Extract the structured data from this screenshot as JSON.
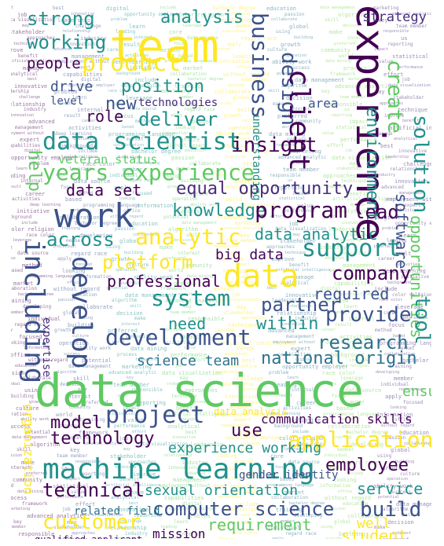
{
  "palette": [
    "#440154",
    "#3b528b",
    "#21918c",
    "#5ec962",
    "#fde725",
    "#2c728e",
    "#7ad151",
    "#472d7b"
  ],
  "words": [
    {
      "text": "strong",
      "c": 2
    },
    {
      "text": "team",
      "c": 4
    },
    {
      "text": "analysis",
      "c": 2
    },
    {
      "text": "experience",
      "c": 0
    },
    {
      "text": "strategy",
      "c": 7
    },
    {
      "text": "working",
      "c": 2
    },
    {
      "text": "product",
      "c": 4
    },
    {
      "text": "business",
      "c": 1
    },
    {
      "text": "design",
      "c": 1
    },
    {
      "text": "people",
      "c": 0
    },
    {
      "text": "position",
      "c": 2
    },
    {
      "text": "client",
      "c": 0
    },
    {
      "text": "new",
      "c": 1
    },
    {
      "text": "technologies",
      "c": 7
    },
    {
      "text": "role",
      "c": 0
    },
    {
      "text": "deliver",
      "c": 2
    },
    {
      "text": "drive",
      "c": 1
    },
    {
      "text": "level",
      "c": 1
    },
    {
      "text": "create",
      "c": 3
    },
    {
      "text": "area",
      "c": 1
    },
    {
      "text": "environment",
      "c": 2
    },
    {
      "text": "data scientist",
      "c": 2
    },
    {
      "text": "insight",
      "c": 0
    },
    {
      "text": "solution",
      "c": 2
    },
    {
      "text": "veteran status",
      "c": 3
    },
    {
      "text": "years experience",
      "c": 3
    },
    {
      "text": "help",
      "c": 3
    },
    {
      "text": "data set",
      "c": 0
    },
    {
      "text": "equal opportunity",
      "c": 7
    },
    {
      "text": "work",
      "c": 1
    },
    {
      "text": "knowledge",
      "c": 2
    },
    {
      "text": "program",
      "c": 0
    },
    {
      "text": "lead",
      "c": 0
    },
    {
      "text": "software",
      "c": 1
    },
    {
      "text": "across",
      "c": 2
    },
    {
      "text": "analytic",
      "c": 4
    },
    {
      "text": "data analytic",
      "c": 2
    },
    {
      "text": "opportunities",
      "c": 3
    },
    {
      "text": "support",
      "c": 2
    },
    {
      "text": "platform",
      "c": 4
    },
    {
      "text": "big data",
      "c": 0
    },
    {
      "text": "including",
      "c": 1
    },
    {
      "text": "develop",
      "c": 1
    },
    {
      "text": "data",
      "c": 4
    },
    {
      "text": "company",
      "c": 0
    },
    {
      "text": "professional",
      "c": 0
    },
    {
      "text": "system",
      "c": 2
    },
    {
      "text": "partner",
      "c": 1
    },
    {
      "text": "required",
      "c": 1
    },
    {
      "text": "provide",
      "c": 1
    },
    {
      "text": "tool",
      "c": 2
    },
    {
      "text": "development",
      "c": 1
    },
    {
      "text": "need",
      "c": 2
    },
    {
      "text": "within",
      "c": 2
    },
    {
      "text": "research",
      "c": 5
    },
    {
      "text": "expertise",
      "c": 7
    },
    {
      "text": "science team",
      "c": 5
    },
    {
      "text": "national origin",
      "c": 5
    },
    {
      "text": "data science",
      "c": 3
    },
    {
      "text": "model",
      "c": 0
    },
    {
      "text": "project",
      "c": 1
    },
    {
      "text": "communication skills",
      "c": 0
    },
    {
      "text": "organization",
      "c": 4
    },
    {
      "text": "application",
      "c": 4
    },
    {
      "text": "technology",
      "c": 0
    },
    {
      "text": "use",
      "c": 0
    },
    {
      "text": "experience working",
      "c": 2
    },
    {
      "text": "employee",
      "c": 0
    },
    {
      "text": "machine learning",
      "c": 2
    },
    {
      "text": "service",
      "c": 2
    },
    {
      "text": "technical",
      "c": 0
    },
    {
      "text": "sexual orientation",
      "c": 2
    },
    {
      "text": "build",
      "c": 1
    },
    {
      "text": "computer science",
      "c": 1
    },
    {
      "text": "well",
      "c": 4
    },
    {
      "text": "customer",
      "c": 4
    },
    {
      "text": "requirement",
      "c": 3
    },
    {
      "text": "student",
      "c": 4
    },
    {
      "text": "mission",
      "c": 0
    },
    {
      "text": "gender identity",
      "c": 1
    },
    {
      "text": "related field",
      "c": 5
    },
    {
      "text": "qualified applicant",
      "c": 0
    },
    {
      "text": "ensure",
      "c": 3
    },
    {
      "text": "understanding",
      "c": 2
    },
    {
      "text": "data analysis",
      "c": 4
    }
  ],
  "small_words": [
    "effort",
    "best",
    "digital",
    "include",
    "bachelor degree",
    "education",
    "data management",
    "marketing",
    "job",
    "innovative",
    "opportunity employer",
    "color religion",
    "training",
    "passion",
    "algorithm",
    "advanced analytic",
    "data visualization",
    "leadership",
    "problem",
    "race color",
    "developing",
    "collaborate",
    "skill",
    "key",
    "may",
    "challenge",
    "learn",
    "leverage",
    "member",
    "global",
    "decision",
    "team member",
    "stakeholder",
    "relationship",
    "leading",
    "core",
    "individual",
    "using",
    "make",
    "responsible",
    "approaches",
    "industry",
    "internal",
    "data source",
    "regard race",
    "building",
    "interest",
    "us",
    "technique",
    "innovation",
    "result",
    "focus",
    "apply",
    "growth",
    "preferred",
    "reporting",
    "improve",
    "advanced",
    "career",
    "method",
    "focused",
    "culture",
    "community",
    "impact",
    "benefit",
    "management",
    "activities",
    "based",
    "looking",
    "operation",
    "world",
    "statistical",
    "artificial intelligence",
    "employment without",
    "deep learning",
    "programming language",
    "information",
    "ability work",
    "data mining",
    "value",
    "manage",
    "expert",
    "initiative",
    "market",
    "office",
    "success",
    "process",
    "performance",
    "analytical",
    "capabilities",
    "background",
    "collaboration",
    "without regard",
    "potential",
    "framework"
  ]
}
